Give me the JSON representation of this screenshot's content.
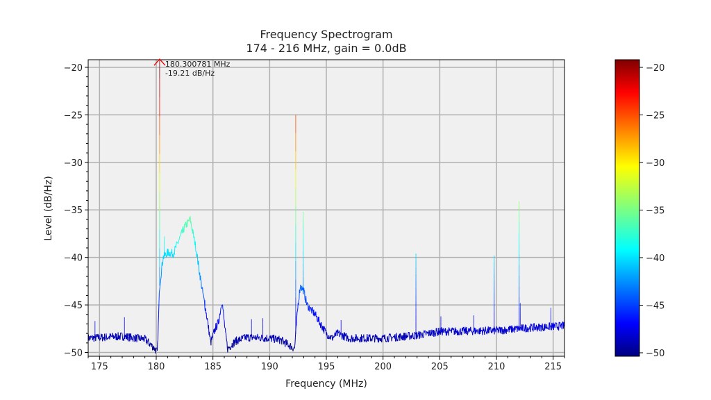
{
  "chart_data": {
    "type": "line",
    "title": "Frequency Spectrogram",
    "subtitle": "174 - 216 MHz, gain = 0.0dB",
    "xlabel": "Frequency (MHz)",
    "ylabel": "Level (dB/Hz)",
    "xlim": [
      174,
      216
    ],
    "ylim": [
      -50.4,
      -19.2
    ],
    "xticks": [
      175,
      180,
      185,
      190,
      195,
      200,
      205,
      210,
      215
    ],
    "yticks": [
      -20,
      -25,
      -30,
      -35,
      -40,
      -45,
      -50
    ],
    "grid": true,
    "colormap": "jet",
    "color_range": [
      -50,
      -20
    ],
    "colorbar_ticks": [
      -20,
      -25,
      -30,
      -35,
      -40,
      -45,
      -50
    ],
    "baseline": [
      [
        174,
        -48.5
      ],
      [
        177,
        -48.3
      ],
      [
        179,
        -48.6
      ],
      [
        179.8,
        -49.5
      ],
      [
        180.1,
        -50
      ],
      [
        180.3,
        -43
      ],
      [
        180.6,
        -40
      ],
      [
        181,
        -39.5
      ],
      [
        181.5,
        -39.6
      ],
      [
        182.5,
        -36.8
      ],
      [
        183,
        -36
      ],
      [
        183.5,
        -39
      ],
      [
        184,
        -43
      ],
      [
        184.5,
        -46.5
      ],
      [
        184.8,
        -49
      ],
      [
        185.2,
        -47.5
      ],
      [
        185.5,
        -46.8
      ],
      [
        185.8,
        -44.5
      ],
      [
        186.1,
        -48
      ],
      [
        186.3,
        -49.6
      ],
      [
        187,
        -48.8
      ],
      [
        188,
        -48.4
      ],
      [
        190,
        -48.5
      ],
      [
        191,
        -48.7
      ],
      [
        191.8,
        -49.3
      ],
      [
        192.2,
        -49.6
      ],
      [
        192.5,
        -45
      ],
      [
        192.7,
        -43
      ],
      [
        193,
        -43.5
      ],
      [
        193.3,
        -45
      ],
      [
        194,
        -46
      ],
      [
        195,
        -48
      ],
      [
        195.5,
        -48.5
      ],
      [
        196,
        -48
      ],
      [
        197,
        -48.5
      ],
      [
        200,
        -48.5
      ],
      [
        203,
        -48.2
      ],
      [
        205,
        -47.8
      ],
      [
        210,
        -47.7
      ],
      [
        213,
        -47.4
      ],
      [
        216,
        -47.2
      ]
    ],
    "spikes": [
      [
        180.3,
        -19.21
      ],
      [
        192.3,
        -25
      ],
      [
        192.95,
        -35.2
      ],
      [
        180.7,
        -37.8
      ],
      [
        202.9,
        -39.6
      ],
      [
        209.8,
        -39.8
      ],
      [
        212,
        -34.1
      ],
      [
        174.6,
        -46.7
      ],
      [
        177.2,
        -46.3
      ],
      [
        184.3,
        -44.5
      ],
      [
        188.4,
        -46.5
      ],
      [
        189.4,
        -46.4
      ],
      [
        196.3,
        -46.6
      ],
      [
        205.1,
        -46.2
      ],
      [
        208,
        -46.1
      ],
      [
        214.8,
        -45.3
      ],
      [
        212.1,
        -44.8
      ]
    ],
    "annotation": {
      "freq_label": "180.300781 MHz",
      "level_label": "-19.21 dB/Hz",
      "freq": 180.300781,
      "level": -19.21
    }
  }
}
